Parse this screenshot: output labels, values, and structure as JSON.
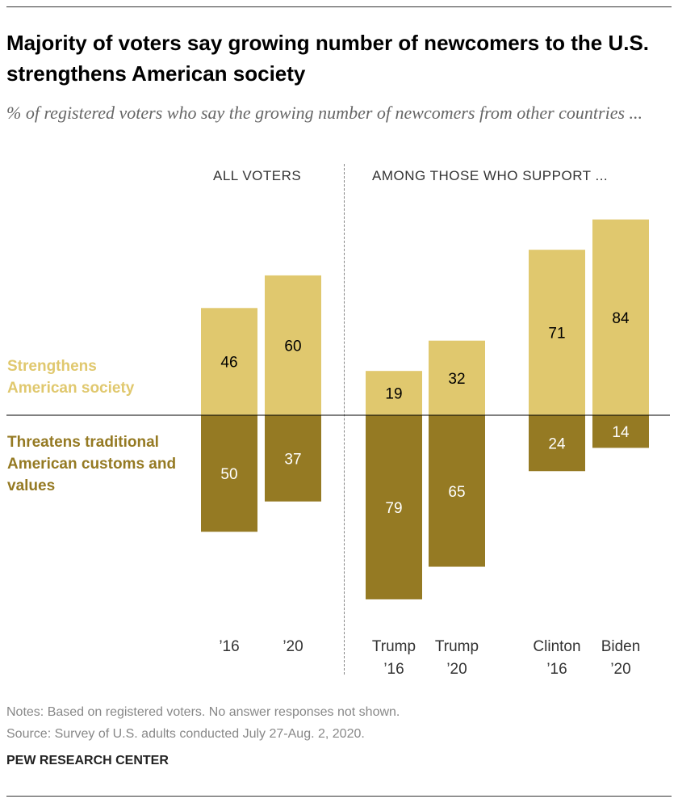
{
  "title": "Majority of voters say growing number of newcomers to the U.S. strengthens American society",
  "subtitle": "% of registered voters who say the growing number of newcomers from other countries ...",
  "group_labels": [
    "ALL VOTERS",
    "AMONG THOSE WHO SUPPORT ..."
  ],
  "notes": "Notes: Based on registered voters. No answer responses not shown.",
  "source": "Source: Survey of U.S. adults conducted July 27-Aug. 2, 2020.",
  "brand": "PEW RESEARCH CENTER",
  "colors": {
    "strengthens": "#E0C86E",
    "threatens": "#957A23"
  },
  "chart_data": {
    "type": "bar",
    "subtype": "diverging-stacked",
    "categories": [
      "’16",
      "’20",
      "Trump\n’16",
      "Trump\n’20",
      "Clinton\n’16",
      "Biden\n’20"
    ],
    "series": [
      {
        "name": "Strengthens American society",
        "values": [
          46,
          60,
          19,
          32,
          71,
          84
        ]
      },
      {
        "name": "Threatens traditional American customs and values",
        "values": [
          50,
          37,
          79,
          65,
          24,
          14
        ]
      }
    ],
    "grid": false,
    "legend": "left"
  }
}
